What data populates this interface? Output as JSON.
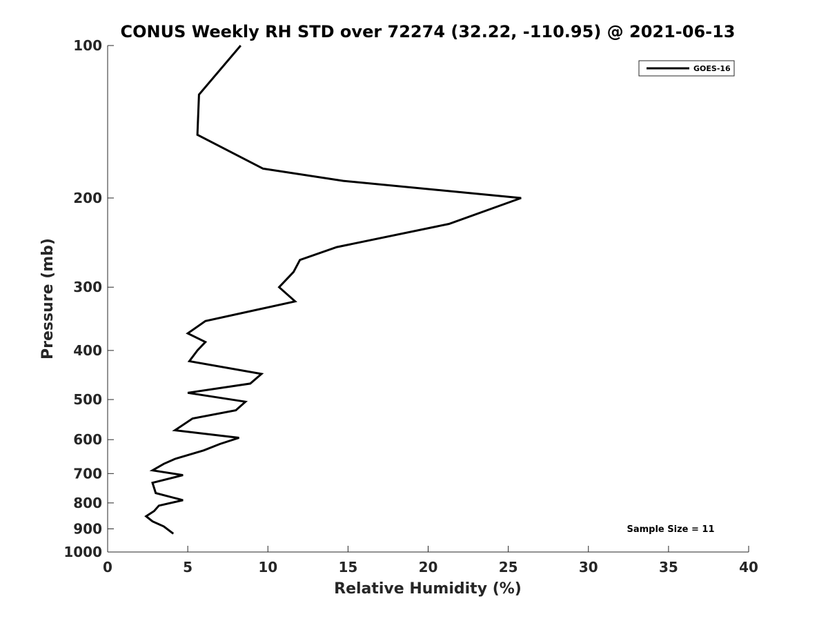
{
  "chart_data": {
    "type": "line",
    "title": "CONUS Weekly RH STD over 72274 (32.22, -110.95) @ 2021-06-13",
    "xlabel": "Relative Humidity (%)",
    "ylabel": "Pressure (mb)",
    "xlim": [
      0,
      40
    ],
    "ylim": [
      100,
      1000
    ],
    "y_scale": "log",
    "y_reversed": true,
    "x_ticks": [
      0,
      5,
      10,
      15,
      20,
      25,
      30,
      35,
      40
    ],
    "y_ticks": [
      100,
      200,
      300,
      400,
      500,
      600,
      700,
      800,
      900,
      1000
    ],
    "grid": false,
    "legend_position": "top-right",
    "series": [
      {
        "name": "GOES-16",
        "color": "#000000",
        "points": [
          {
            "x": 8.3,
            "y": 100
          },
          {
            "x": 5.7,
            "y": 125
          },
          {
            "x": 5.6,
            "y": 150
          },
          {
            "x": 9.7,
            "y": 175
          },
          {
            "x": 14.7,
            "y": 185
          },
          {
            "x": 25.8,
            "y": 200
          },
          {
            "x": 21.3,
            "y": 225
          },
          {
            "x": 14.3,
            "y": 250
          },
          {
            "x": 12.0,
            "y": 265
          },
          {
            "x": 11.6,
            "y": 280
          },
          {
            "x": 10.7,
            "y": 300
          },
          {
            "x": 11.7,
            "y": 320
          },
          {
            "x": 6.1,
            "y": 350
          },
          {
            "x": 5.0,
            "y": 370
          },
          {
            "x": 6.1,
            "y": 385
          },
          {
            "x": 5.6,
            "y": 400
          },
          {
            "x": 5.1,
            "y": 420
          },
          {
            "x": 9.6,
            "y": 445
          },
          {
            "x": 8.9,
            "y": 465
          },
          {
            "x": 5.0,
            "y": 485
          },
          {
            "x": 8.6,
            "y": 505
          },
          {
            "x": 8.0,
            "y": 525
          },
          {
            "x": 5.3,
            "y": 545
          },
          {
            "x": 4.2,
            "y": 575
          },
          {
            "x": 8.2,
            "y": 595
          },
          {
            "x": 7.0,
            "y": 612
          },
          {
            "x": 6.0,
            "y": 630
          },
          {
            "x": 4.2,
            "y": 655
          },
          {
            "x": 3.5,
            "y": 670
          },
          {
            "x": 2.8,
            "y": 690
          },
          {
            "x": 4.7,
            "y": 705
          },
          {
            "x": 2.8,
            "y": 730
          },
          {
            "x": 3.0,
            "y": 765
          },
          {
            "x": 4.7,
            "y": 790
          },
          {
            "x": 3.2,
            "y": 810
          },
          {
            "x": 2.9,
            "y": 830
          },
          {
            "x": 2.4,
            "y": 850
          },
          {
            "x": 2.8,
            "y": 870
          },
          {
            "x": 3.5,
            "y": 890
          },
          {
            "x": 4.1,
            "y": 920
          }
        ]
      }
    ],
    "annotations": [
      {
        "text": "Sample Size = 11"
      }
    ]
  }
}
